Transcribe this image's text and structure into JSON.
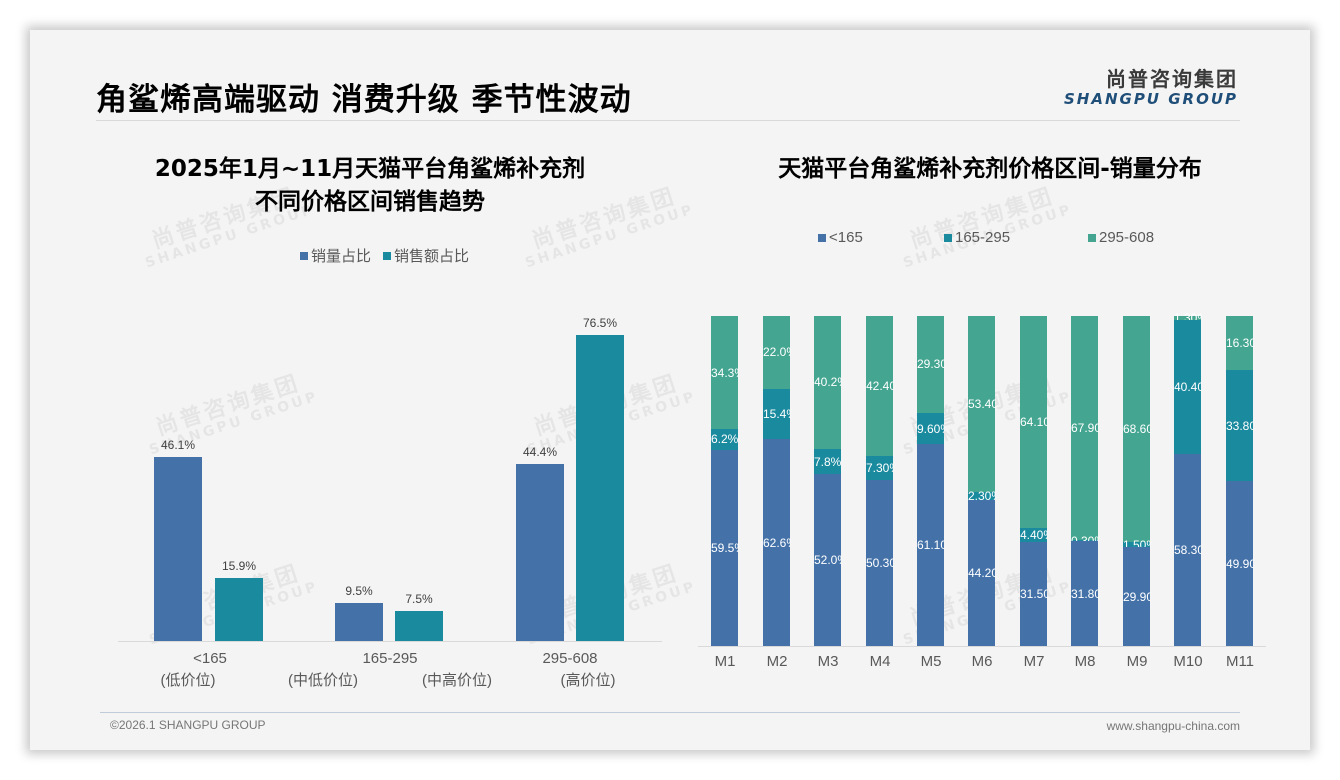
{
  "header": {
    "title": "角鲨烯高端驱动 消费升级 季节性波动",
    "logo_cn": "尚普咨询集团",
    "logo_en": "SHANGPU GROUP"
  },
  "watermark": {
    "cn": "尚普咨询集团",
    "en": "SHANGPU GROUP"
  },
  "colors": {
    "blue": "#4472a8",
    "teal": "#1a8a9e",
    "green": "#44a590",
    "slide_bg": "#f4f4f4"
  },
  "left_chart": {
    "title_line1": "2025年1月~11月天猫平台角鲨烯补充剂",
    "title_line2": "不同价格区间销售趋势",
    "legend": [
      {
        "label": "销量占比"
      },
      {
        "label": "销售额占比"
      }
    ],
    "categories": [
      {
        "range": "<165",
        "tier": "(低价位)",
        "volume_label": "46.1%",
        "sales_label": "15.9%"
      },
      {
        "range": "165-295",
        "tier_left": "(中低价位)",
        "tier_right": "(中高价位)",
        "volume_label": "9.5%",
        "sales_label": "7.5%"
      },
      {
        "range": "295-608",
        "tier": "(高价位)",
        "volume_label": "44.4%",
        "sales_label": "76.5%"
      }
    ]
  },
  "right_chart": {
    "title": "天猫平台角鲨烯补充剂价格区间-销量分布",
    "legend": [
      {
        "label": "<165"
      },
      {
        "label": "165-295"
      },
      {
        "label": "295-608"
      }
    ],
    "months": [
      {
        "m": "M1",
        "low_label": "59.5%",
        "mid_label": "6.2%",
        "high_label": "34.3%"
      },
      {
        "m": "M2",
        "low_label": "62.6%",
        "mid_label": "15.4%",
        "high_label": "22.0%"
      },
      {
        "m": "M3",
        "low_label": "52.0%",
        "mid_label": "7.8%",
        "high_label": "40.2%"
      },
      {
        "m": "M4",
        "low_label": "50.30%",
        "mid_label": "7.30%",
        "high_label": "42.40%"
      },
      {
        "m": "M5",
        "low_label": "61.10%",
        "mid_label": "9.60%",
        "high_label": "29.30%"
      },
      {
        "m": "M6",
        "low_label": "44.20%",
        "mid_label": "2.30%",
        "high_label": "53.40%"
      },
      {
        "m": "M7",
        "low_label": "31.50%",
        "mid_label": "4.40%",
        "high_label": "64.10%"
      },
      {
        "m": "M8",
        "low_label": "31.80%",
        "mid_label": "0.30%",
        "high_label": "67.90%"
      },
      {
        "m": "M9",
        "low_label": "29.90%",
        "mid_label": "1.50%",
        "high_label": "68.60%"
      },
      {
        "m": "M10",
        "low_label": "58.30%",
        "mid_label": "40.40%",
        "high_label": "1.30%"
      },
      {
        "m": "M11",
        "low_label": "49.90%",
        "mid_label": "33.80%",
        "high_label": "16.30%"
      }
    ]
  },
  "footer": {
    "copyright": "©2026.1 SHANGPU GROUP",
    "website": "www.shangpu-china.com"
  },
  "chart_data": [
    {
      "type": "bar",
      "title": "2025年1月~11月天猫平台角鲨烯补充剂不同价格区间销售趋势",
      "categories": [
        "<165 (低价位)",
        "165-295 (中低价位/中高价位)",
        "295-608 (高价位)"
      ],
      "series": [
        {
          "name": "销量占比",
          "values": [
            46.1,
            9.5,
            44.4
          ]
        },
        {
          "name": "销售额占比",
          "values": [
            15.9,
            7.5,
            76.5
          ]
        }
      ],
      "xlabel": "",
      "ylabel": "",
      "ylim": [
        0,
        80
      ],
      "grid": false,
      "legend_position": "top",
      "unit": "%"
    },
    {
      "type": "bar",
      "stacked": true,
      "percent_stacked": true,
      "title": "天猫平台角鲨烯补充剂价格区间-销量分布",
      "categories": [
        "M1",
        "M2",
        "M3",
        "M4",
        "M5",
        "M6",
        "M7",
        "M8",
        "M9",
        "M10",
        "M11"
      ],
      "series": [
        {
          "name": "<165",
          "values": [
            59.5,
            62.6,
            52.0,
            50.3,
            61.1,
            44.2,
            31.5,
            31.8,
            29.9,
            58.3,
            49.9
          ]
        },
        {
          "name": "165-295",
          "values": [
            6.2,
            15.4,
            7.8,
            7.3,
            9.6,
            2.3,
            4.4,
            0.3,
            1.5,
            40.4,
            33.8
          ]
        },
        {
          "name": "295-608",
          "values": [
            34.3,
            22.0,
            40.2,
            42.4,
            29.3,
            53.4,
            64.1,
            67.9,
            68.6,
            1.3,
            16.3
          ]
        }
      ],
      "xlabel": "",
      "ylabel": "",
      "ylim": [
        0,
        100
      ],
      "grid": false,
      "legend_position": "top",
      "unit": "%"
    }
  ]
}
